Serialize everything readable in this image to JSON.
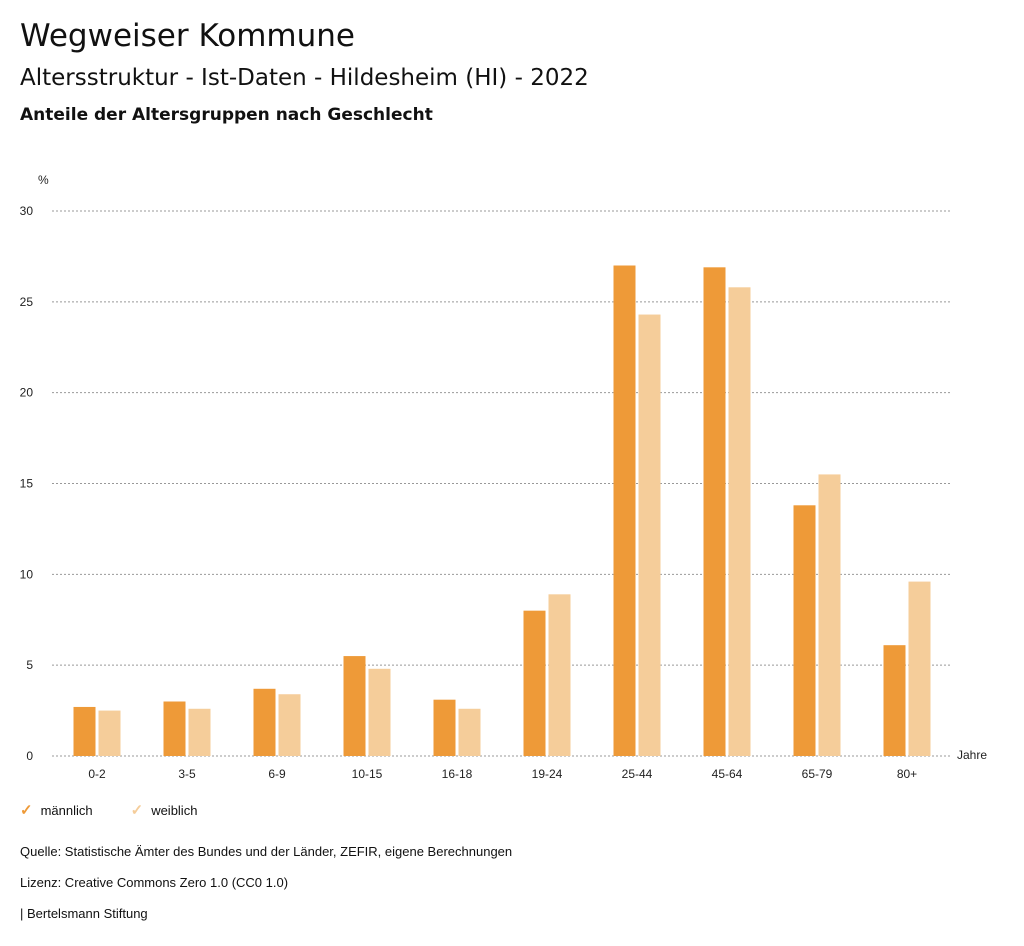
{
  "header": {
    "title": "Wegweiser Kommune",
    "subtitle": "Altersstruktur - Ist-Daten - Hildesheim (HI) - 2022",
    "chart_title": "Anteile der Altersgruppen nach Geschlecht"
  },
  "legend": {
    "male_label": "männlich",
    "female_label": "weiblich",
    "check_icon": "check-icon"
  },
  "footer": {
    "source": "Quelle: Statistische Ämter des Bundes und der Länder, ZEFIR, eigene Berechnungen",
    "license": "Lizenz: Creative Commons Zero 1.0 (CC0 1.0)",
    "publisher": "| Bertelsmann Stiftung"
  },
  "colors": {
    "male": "#ee9a38",
    "female": "#f5cd9a",
    "grid": "#999999"
  },
  "chart_data": {
    "type": "bar",
    "title": "Anteile der Altersgruppen nach Geschlecht",
    "xlabel": "Jahre",
    "ylabel": "%",
    "ylim": [
      0,
      30
    ],
    "yticks": [
      0,
      5,
      10,
      15,
      20,
      25,
      30
    ],
    "grid": true,
    "legend_position": "bottom-left",
    "categories": [
      "0-2",
      "3-5",
      "6-9",
      "10-15",
      "16-18",
      "19-24",
      "25-44",
      "45-64",
      "65-79",
      "80+"
    ],
    "series": [
      {
        "name": "männlich",
        "values": [
          2.7,
          3.0,
          3.7,
          5.5,
          3.1,
          8.0,
          27.0,
          26.9,
          13.8,
          6.1
        ]
      },
      {
        "name": "weiblich",
        "values": [
          2.5,
          2.6,
          3.4,
          4.8,
          2.6,
          8.9,
          24.3,
          25.8,
          15.5,
          9.6
        ]
      }
    ]
  }
}
